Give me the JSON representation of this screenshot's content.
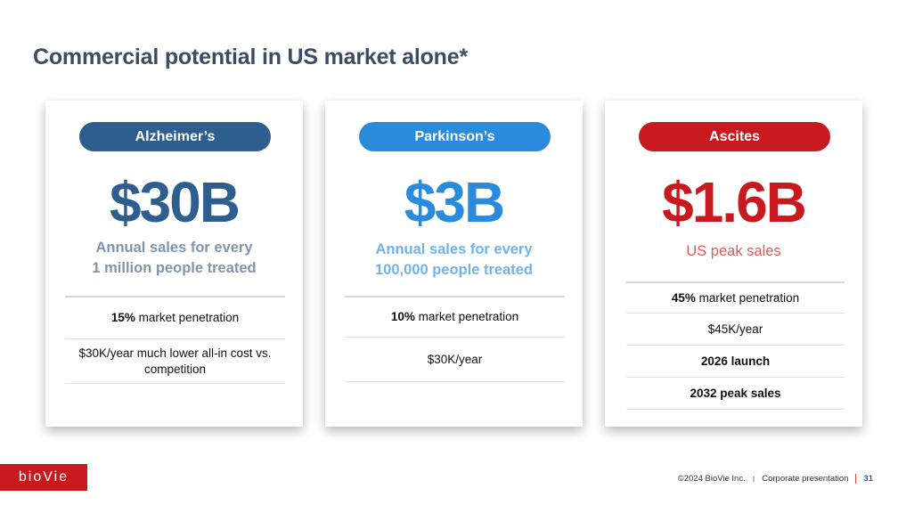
{
  "title": "Commercial potential in US market alone*",
  "colors": {
    "alzheimers_pill": "#2e5d8f",
    "alzheimers_value": "#2e5d8f",
    "alzheimers_sub": "#7f94ad",
    "parkinsons_pill": "#2a8bdc",
    "parkinsons_value": "#2a8bdc",
    "parkinsons_sub": "#6fb3e8",
    "ascites_pill": "#c8191e",
    "ascites_value": "#c8191e",
    "ascites_sub": "#e05a5a"
  },
  "cards": [
    {
      "label": "Alzheimer’s",
      "value": "$30B",
      "sub_line1": "Annual sales for every",
      "sub_line2": "1 million people treated",
      "rows": [
        {
          "bold": "15%",
          "text": " market penetration"
        },
        {
          "bold": "",
          "text": "$30K/year much lower all-in cost vs. competition"
        }
      ]
    },
    {
      "label": "Parkinson’s",
      "value": "$3B",
      "sub_line1": "Annual sales for every",
      "sub_line2": "100,000 people treated",
      "rows": [
        {
          "bold": "10%",
          "text": " market penetration"
        },
        {
          "bold": "",
          "text": "$30K/year"
        }
      ]
    },
    {
      "label": "Ascites",
      "value": "$1.6B",
      "sub_line1": "US peak sales",
      "rows": [
        {
          "bold": "45%",
          "text": " market penetration"
        },
        {
          "bold": "",
          "text": "$45K/year"
        },
        {
          "bold": "2026 launch",
          "text": ""
        },
        {
          "bold": "2032 peak sales",
          "text": ""
        }
      ]
    }
  ],
  "logo": "bioVie",
  "footer": {
    "copyright": "©2024 BioVie Inc.",
    "separator": "I",
    "label": "Corporate presentation",
    "page": "31"
  }
}
